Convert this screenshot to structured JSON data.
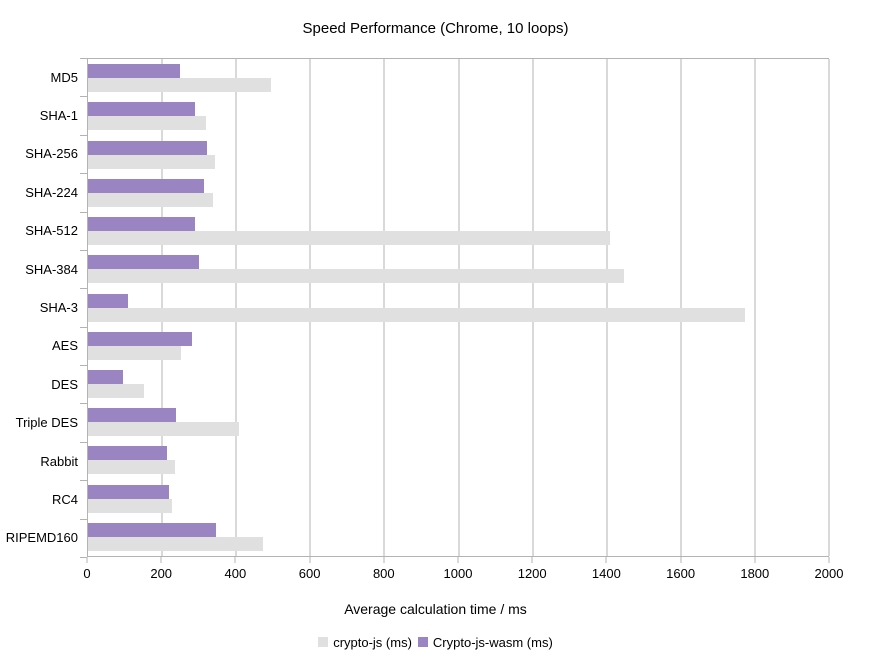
{
  "title": "Speed Performance (Chrome, 10 loops)",
  "chart_data": {
    "type": "bar",
    "orientation": "horizontal",
    "title": "Speed Performance (Chrome, 10 loops)",
    "xlabel": "Average calculation time / ms",
    "ylabel": "",
    "xlim": [
      0,
      2000
    ],
    "xticks": [
      0,
      200,
      400,
      600,
      800,
      1000,
      1200,
      1400,
      1600,
      1800,
      2000
    ],
    "grid": "vertical",
    "legend_position": "bottom",
    "categories": [
      "MD5",
      "SHA-1",
      "SHA-256",
      "SHA-224",
      "SHA-512",
      "SHA-384",
      "SHA-3",
      "AES",
      "DES",
      "Triple DES",
      "Rabbit",
      "RC4",
      "RIPEMD160"
    ],
    "series": [
      {
        "name": "crypto-js (ms)",
        "color": "#e0e0e0",
        "values": [
          493,
          318,
          344,
          337,
          1408,
          1448,
          1774,
          250,
          150,
          408,
          236,
          228,
          471
        ]
      },
      {
        "name": "Crypto-js-wasm (ms)",
        "color": "#9a85c2",
        "values": [
          247,
          288,
          320,
          312,
          290,
          300,
          108,
          280,
          94,
          237,
          213,
          219,
          346
        ]
      }
    ],
    "axis_color": "#b3b3b3",
    "text_color": "#000000"
  }
}
